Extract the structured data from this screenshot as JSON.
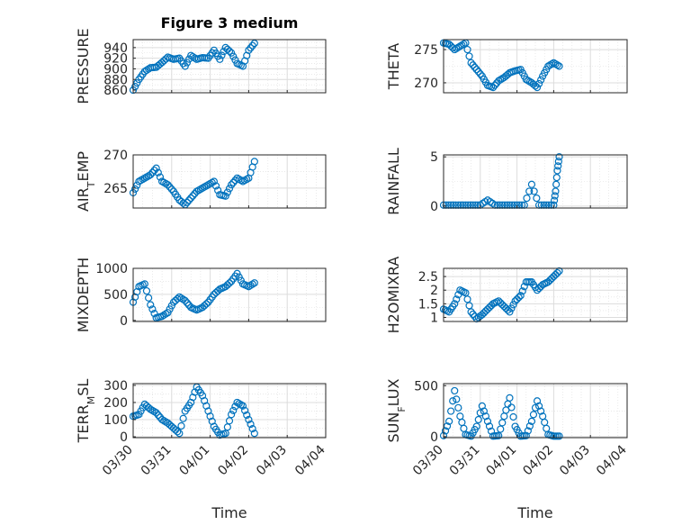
{
  "figure": {
    "title": "Figure 3 medium"
  },
  "colors": {
    "marker": "#0072BD",
    "axis": "#262626",
    "grid": "#dcdcdc"
  },
  "chart_data": [
    {
      "type": "scatter",
      "ylabel_parts": [
        [
          "PRESSURE",
          ""
        ]
      ],
      "title": "Figure 3 medium",
      "ylim": [
        855,
        955
      ],
      "yticks": [
        860,
        880,
        900,
        920,
        940
      ],
      "x": [
        0.0,
        0.15,
        0.3,
        0.45,
        0.6,
        0.75,
        0.9,
        1.05,
        1.2,
        1.35,
        1.5,
        1.65,
        1.8,
        1.95,
        2.1,
        2.25,
        2.4,
        2.55,
        2.7,
        2.85,
        3.0,
        3.15
      ],
      "y": [
        860,
        880,
        895,
        902,
        903,
        912,
        922,
        918,
        920,
        905,
        925,
        918,
        921,
        920,
        935,
        918,
        940,
        930,
        910,
        905,
        935,
        948
      ],
      "xlabel": ""
    },
    {
      "type": "scatter",
      "ylabel_parts": [
        [
          "THETA",
          ""
        ]
      ],
      "ylim": [
        268.5,
        276.5
      ],
      "yticks": [
        270,
        275
      ],
      "x": [
        0.0,
        0.15,
        0.3,
        0.45,
        0.6,
        0.75,
        0.9,
        1.05,
        1.2,
        1.35,
        1.5,
        1.65,
        1.8,
        1.95,
        2.1,
        2.25,
        2.4,
        2.55,
        2.7,
        2.85,
        3.0,
        3.15
      ],
      "y": [
        276,
        275.8,
        275,
        275.5,
        276,
        273,
        272,
        271,
        269.6,
        269.3,
        270.3,
        270.8,
        271.5,
        271.8,
        272,
        270.5,
        270,
        269.3,
        271,
        272.5,
        273,
        272.5
      ],
      "xlabel": ""
    },
    {
      "type": "scatter",
      "ylabel_parts": [
        [
          "AIR",
          ""
        ],
        [
          "T",
          "sub"
        ],
        [
          "EMP",
          ""
        ]
      ],
      "ylim": [
        262,
        270
      ],
      "yticks": [
        265,
        270
      ],
      "x": [
        0.0,
        0.15,
        0.3,
        0.45,
        0.6,
        0.75,
        0.9,
        1.05,
        1.2,
        1.35,
        1.5,
        1.65,
        1.8,
        1.95,
        2.1,
        2.25,
        2.4,
        2.55,
        2.7,
        2.85,
        3.0,
        3.15
      ],
      "y": [
        264.3,
        266,
        266.5,
        267,
        268,
        266,
        265.5,
        264.5,
        263.2,
        262.5,
        263.5,
        264.5,
        265,
        265.5,
        266,
        264,
        263.8,
        265.5,
        266.5,
        266,
        266.5,
        269
      ],
      "xlabel": ""
    },
    {
      "type": "scatter",
      "ylabel_parts": [
        [
          "RAINFALL",
          ""
        ]
      ],
      "ylim": [
        -0.2,
        5.2
      ],
      "yticks": [
        0,
        5
      ],
      "x": [
        0.0,
        0.2,
        0.4,
        0.6,
        0.8,
        1.0,
        1.2,
        1.4,
        1.6,
        1.8,
        2.0,
        2.2,
        2.4,
        2.6,
        2.8,
        3.0,
        3.05,
        3.1,
        3.15
      ],
      "y": [
        0.1,
        0.1,
        0.1,
        0.1,
        0.1,
        0.1,
        0.6,
        0.1,
        0.1,
        0.1,
        0.1,
        0.1,
        2.2,
        0.1,
        0.1,
        0.1,
        1.5,
        3.6,
        5.0
      ],
      "xlabel": ""
    },
    {
      "type": "scatter",
      "ylabel_parts": [
        [
          "MIXDEPTH",
          ""
        ]
      ],
      "ylim": [
        -20,
        1000
      ],
      "yticks": [
        0,
        500,
        1000
      ],
      "x": [
        0.0,
        0.15,
        0.3,
        0.45,
        0.6,
        0.75,
        0.9,
        1.05,
        1.2,
        1.35,
        1.5,
        1.65,
        1.8,
        1.95,
        2.1,
        2.25,
        2.4,
        2.55,
        2.7,
        2.85,
        3.0,
        3.15
      ],
      "y": [
        350,
        650,
        700,
        300,
        50,
        80,
        150,
        350,
        450,
        380,
        250,
        200,
        250,
        350,
        500,
        600,
        650,
        750,
        900,
        700,
        650,
        720
      ],
      "xlabel": ""
    },
    {
      "type": "scatter",
      "ylabel_parts": [
        [
          "H2OMIXRA",
          ""
        ]
      ],
      "ylim": [
        0.85,
        2.8
      ],
      "yticks": [
        1,
        1.5,
        2,
        2.5
      ],
      "x": [
        0.0,
        0.15,
        0.3,
        0.45,
        0.6,
        0.75,
        0.9,
        1.05,
        1.2,
        1.35,
        1.5,
        1.65,
        1.8,
        1.95,
        2.1,
        2.25,
        2.4,
        2.55,
        2.7,
        2.85,
        3.0,
        3.15
      ],
      "y": [
        1.3,
        1.2,
        1.5,
        2.0,
        1.9,
        1.2,
        0.95,
        1.1,
        1.3,
        1.5,
        1.6,
        1.4,
        1.2,
        1.6,
        1.8,
        2.3,
        2.3,
        2.0,
        2.2,
        2.3,
        2.5,
        2.7
      ],
      "xlabel": ""
    },
    {
      "type": "scatter",
      "ylabel_parts": [
        [
          "TERR",
          ""
        ],
        [
          "M",
          "sub"
        ],
        [
          "SL",
          ""
        ]
      ],
      "ylim": [
        -5,
        310
      ],
      "yticks": [
        0,
        100,
        200,
        300
      ],
      "x": [
        0.0,
        0.15,
        0.3,
        0.45,
        0.6,
        0.75,
        0.9,
        1.05,
        1.2,
        1.35,
        1.5,
        1.65,
        1.8,
        1.95,
        2.1,
        2.25,
        2.4,
        2.55,
        2.7,
        2.85,
        3.0,
        3.15
      ],
      "y": [
        120,
        130,
        190,
        160,
        140,
        100,
        80,
        50,
        20,
        150,
        200,
        290,
        240,
        150,
        60,
        10,
        20,
        130,
        200,
        180,
        100,
        20
      ],
      "xlabel": "Time",
      "xticks": [
        "03/30",
        "03/31",
        "04/01",
        "04/02",
        "04/03",
        "04/04"
      ]
    },
    {
      "type": "scatter",
      "ylabel_parts": [
        [
          "SUN",
          ""
        ],
        [
          "F",
          "sub"
        ],
        [
          "LUX",
          ""
        ]
      ],
      "ylim": [
        -10,
        520
      ],
      "yticks": [
        0,
        500
      ],
      "x": [
        0.0,
        0.15,
        0.3,
        0.45,
        0.6,
        0.75,
        0.9,
        1.05,
        1.2,
        1.35,
        1.5,
        1.65,
        1.8,
        1.95,
        2.1,
        2.25,
        2.4,
        2.55,
        2.7,
        2.85,
        3.0,
        3.15
      ],
      "y": [
        10,
        150,
        450,
        200,
        20,
        5,
        100,
        300,
        150,
        5,
        10,
        200,
        380,
        100,
        5,
        10,
        150,
        350,
        200,
        20,
        5,
        5
      ],
      "xlabel": "Time",
      "xticks": [
        "03/30",
        "03/31",
        "04/01",
        "04/02",
        "04/03",
        "04/04"
      ]
    }
  ]
}
